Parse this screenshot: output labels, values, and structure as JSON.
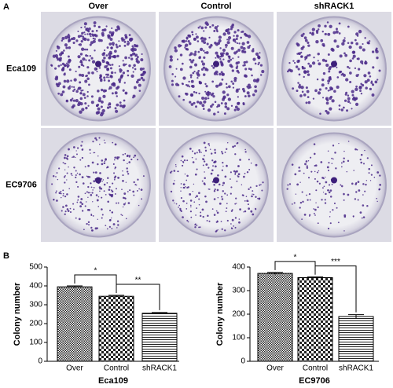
{
  "panel_a": {
    "label": "A",
    "columns": [
      "Over",
      "Control",
      "shRACK1"
    ],
    "rows": [
      "Eca109",
      "EC9706"
    ]
  },
  "panel_b_label": "B",
  "chart_data": [
    {
      "type": "bar",
      "xlabel": "Eca109",
      "ylabel": "Colony number",
      "categories": [
        "Over",
        "Control",
        "shRACK1"
      ],
      "values": [
        395,
        345,
        255
      ],
      "errors": [
        5,
        5,
        4
      ],
      "color": "#000000",
      "ylim": [
        0,
        500
      ],
      "yticks": [
        0,
        100,
        200,
        300,
        400,
        500
      ],
      "significance": [
        {
          "between": [
            "Over",
            "Control"
          ],
          "label": "*"
        },
        {
          "between": [
            "Control",
            "shRACK1"
          ],
          "label": "**"
        }
      ]
    },
    {
      "type": "bar",
      "xlabel": "EC9706",
      "ylabel": "Colony number",
      "categories": [
        "Over",
        "Control",
        "shRACK1"
      ],
      "values": [
        373,
        355,
        190
      ],
      "errors": [
        4,
        3,
        8
      ],
      "color": "#000000",
      "ylim": [
        0,
        400
      ],
      "yticks": [
        0,
        100,
        200,
        300,
        400
      ],
      "significance": [
        {
          "between": [
            "Over",
            "Control"
          ],
          "label": "*"
        },
        {
          "between": [
            "Control",
            "shRACK1"
          ],
          "label": "***"
        }
      ]
    }
  ]
}
